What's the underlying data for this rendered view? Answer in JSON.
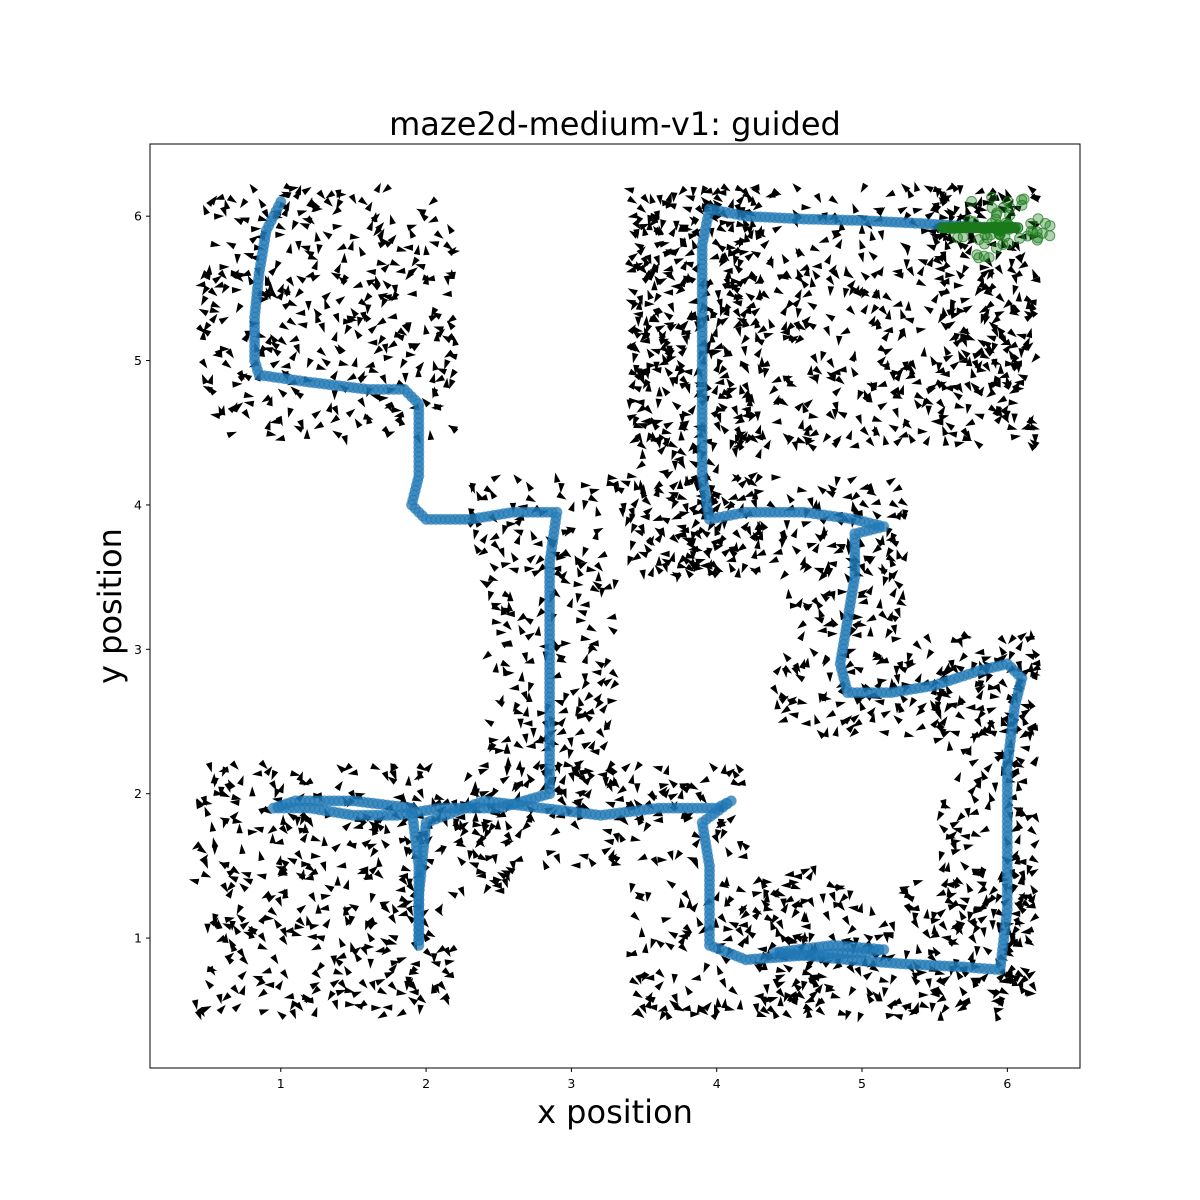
{
  "chart_data": {
    "type": "scatter",
    "title": "maze2d-medium-v1: guided",
    "xlabel": "x position",
    "ylabel": "y position",
    "xlim": [
      0.1,
      6.5
    ],
    "ylim": [
      0.1,
      6.5
    ],
    "xticks": [
      "1",
      "2",
      "3",
      "4",
      "5",
      "6"
    ],
    "yticks": [
      "1",
      "2",
      "3",
      "4",
      "5",
      "6"
    ],
    "grid": false,
    "colors": {
      "trajectory": "#1f77b4",
      "goal_cluster": "#1a7a1a",
      "arrows": "#000000"
    },
    "series": [
      {
        "kind": "trajectory",
        "points": [
          [
            1.0,
            6.1
          ],
          [
            0.9,
            5.9
          ],
          [
            0.85,
            5.6
          ],
          [
            0.82,
            5.3
          ],
          [
            0.82,
            5.0
          ],
          [
            0.85,
            4.9
          ],
          [
            1.2,
            4.85
          ],
          [
            1.6,
            4.8
          ],
          [
            1.85,
            4.8
          ],
          [
            1.95,
            4.7
          ],
          [
            1.95,
            4.4
          ],
          [
            1.95,
            4.2
          ],
          [
            1.9,
            4.0
          ],
          [
            2.0,
            3.9
          ],
          [
            2.3,
            3.9
          ],
          [
            2.6,
            3.95
          ],
          [
            2.9,
            3.95
          ],
          [
            2.85,
            3.6
          ],
          [
            2.85,
            3.2
          ],
          [
            2.85,
            2.8
          ],
          [
            2.85,
            2.4
          ],
          [
            2.85,
            2.0
          ],
          [
            2.5,
            1.9
          ],
          [
            2.1,
            1.9
          ],
          [
            1.8,
            1.85
          ],
          [
            1.5,
            1.85
          ],
          [
            1.2,
            1.9
          ],
          [
            0.95,
            1.9
          ],
          [
            1.1,
            1.95
          ],
          [
            1.5,
            1.95
          ],
          [
            1.9,
            1.9
          ],
          [
            1.95,
            1.5
          ],
          [
            1.95,
            1.2
          ],
          [
            1.95,
            0.95
          ],
          [
            1.95,
            1.3
          ],
          [
            2.0,
            1.8
          ],
          [
            2.4,
            1.95
          ],
          [
            2.8,
            1.9
          ],
          [
            3.2,
            1.85
          ],
          [
            3.6,
            1.9
          ],
          [
            4.0,
            1.9
          ],
          [
            4.1,
            1.95
          ],
          [
            3.9,
            1.8
          ],
          [
            3.95,
            1.5
          ],
          [
            3.95,
            1.2
          ],
          [
            3.95,
            0.95
          ],
          [
            4.2,
            0.85
          ],
          [
            4.6,
            0.88
          ],
          [
            5.0,
            0.9
          ],
          [
            5.15,
            0.92
          ],
          [
            4.8,
            0.95
          ],
          [
            4.4,
            0.9
          ],
          [
            4.9,
            0.85
          ],
          [
            5.3,
            0.82
          ],
          [
            5.7,
            0.8
          ],
          [
            5.95,
            0.78
          ],
          [
            6.0,
            1.2
          ],
          [
            6.0,
            1.7
          ],
          [
            6.0,
            2.2
          ],
          [
            6.05,
            2.6
          ],
          [
            6.1,
            2.8
          ],
          [
            6.0,
            2.9
          ],
          [
            5.8,
            2.85
          ],
          [
            5.5,
            2.75
          ],
          [
            5.2,
            2.7
          ],
          [
            4.9,
            2.7
          ],
          [
            4.85,
            2.9
          ],
          [
            4.9,
            3.2
          ],
          [
            4.95,
            3.5
          ],
          [
            4.95,
            3.8
          ],
          [
            5.15,
            3.85
          ],
          [
            4.95,
            3.9
          ],
          [
            4.6,
            3.95
          ],
          [
            4.2,
            3.95
          ],
          [
            3.95,
            3.9
          ],
          [
            3.9,
            4.2
          ],
          [
            3.9,
            4.6
          ],
          [
            3.9,
            5.0
          ],
          [
            3.9,
            5.4
          ],
          [
            3.9,
            5.8
          ],
          [
            3.95,
            6.05
          ],
          [
            4.2,
            6.0
          ],
          [
            4.6,
            5.98
          ],
          [
            5.0,
            5.97
          ],
          [
            5.4,
            5.95
          ],
          [
            5.7,
            5.93
          ],
          [
            5.95,
            5.92
          ],
          [
            6.05,
            5.93
          ]
        ]
      },
      {
        "kind": "goal_cluster",
        "center": [
          5.95,
          5.9
        ]
      }
    ]
  }
}
